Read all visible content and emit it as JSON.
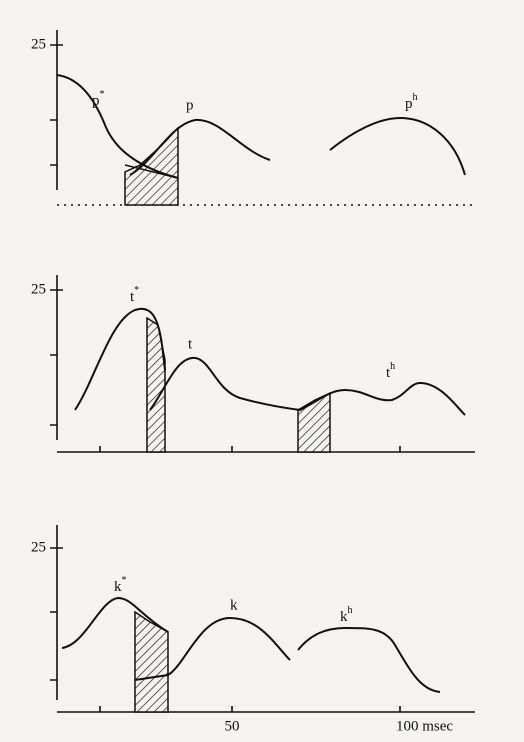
{
  "panels": [
    {
      "ytick": "25",
      "labels": [
        {
          "base": "p",
          "sup": "*"
        },
        {
          "base": "p",
          "sup": null
        },
        {
          "base": "p",
          "sup": "h"
        }
      ]
    },
    {
      "ytick": "25",
      "labels": [
        {
          "base": "t",
          "sup": "*"
        },
        {
          "base": "t",
          "sup": null
        },
        {
          "base": "t",
          "sup": "h"
        }
      ]
    },
    {
      "ytick": "25",
      "labels": [
        {
          "base": "k",
          "sup": "*"
        },
        {
          "base": "k",
          "sup": null
        },
        {
          "base": "k",
          "sup": "h"
        }
      ]
    }
  ],
  "x_axis": {
    "ticks": [
      "50",
      "100 msec"
    ]
  }
}
